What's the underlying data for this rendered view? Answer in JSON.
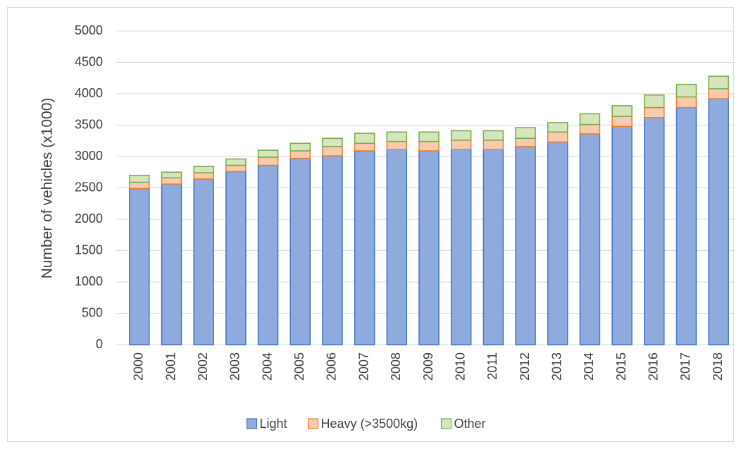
{
  "chart_data": {
    "type": "stacked_bar",
    "y_label": "Number of vehicles (x1000)",
    "categories": [
      "2000",
      "2001",
      "2002",
      "2003",
      "2004",
      "2005",
      "2006",
      "2007",
      "2008",
      "2009",
      "2010",
      "2011",
      "2012",
      "2013",
      "2014",
      "2015",
      "2016",
      "2017",
      "2018"
    ],
    "series": [
      {
        "name": "Light",
        "color": "#8faadc",
        "stroke": "#4472c4",
        "values": [
          2490,
          2560,
          2640,
          2760,
          2860,
          2970,
          3010,
          3090,
          3110,
          3090,
          3110,
          3110,
          3160,
          3230,
          3360,
          3480,
          3620,
          3780,
          3920
        ]
      },
      {
        "name": "Heavy (>3500kg)",
        "color": "#f8cbad",
        "stroke": "#ed7d31",
        "values": [
          100,
          100,
          100,
          100,
          130,
          120,
          150,
          120,
          130,
          150,
          150,
          150,
          130,
          160,
          150,
          160,
          160,
          170,
          160
        ]
      },
      {
        "name": "Other",
        "color": "#d8e4bc",
        "stroke": "#70ad47",
        "values": [
          110,
          90,
          100,
          100,
          110,
          120,
          130,
          160,
          150,
          150,
          150,
          150,
          170,
          150,
          170,
          170,
          200,
          200,
          200
        ]
      }
    ],
    "ylim": [
      0,
      5000
    ],
    "yticks": [
      0,
      500,
      1000,
      1500,
      2000,
      2500,
      3000,
      3500,
      4000,
      4500,
      5000
    ],
    "grid": true,
    "legend": "bottom"
  }
}
